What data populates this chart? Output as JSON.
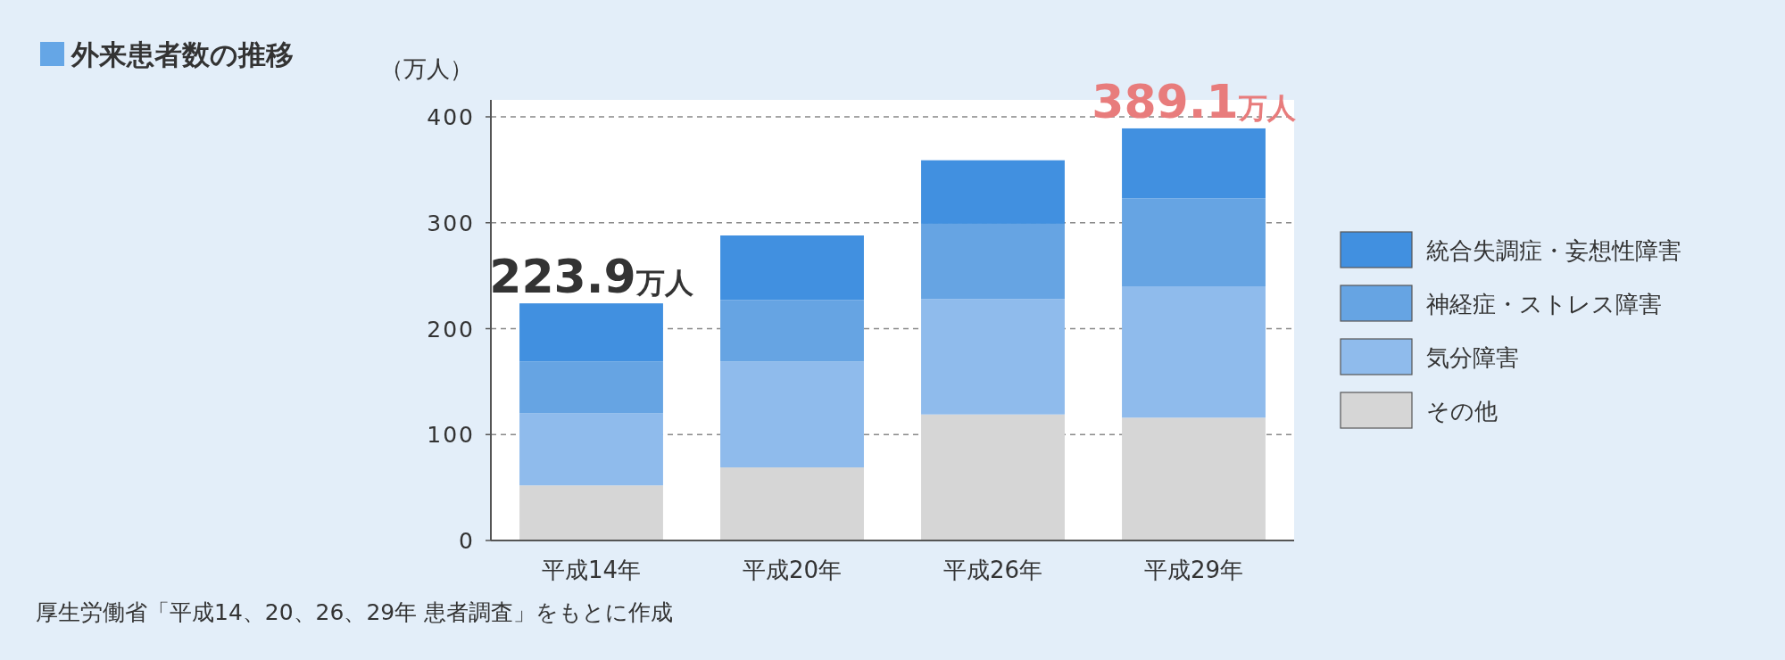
{
  "chart_data": {
    "type": "bar",
    "title": "外来患者数の推移",
    "ylabel": "（万人）",
    "stacked": true,
    "categories": [
      "平成14年",
      "平成20年",
      "平成26年",
      "平成29年"
    ],
    "series": [
      {
        "name": "その他",
        "color": "#d6d6d6",
        "values": [
          52,
          69,
          119,
          116
        ]
      },
      {
        "name": "気分障害",
        "color": "#8fbbec",
        "values": [
          68,
          100,
          109,
          124
        ]
      },
      {
        "name": "神経症・ストレス障害",
        "color": "#66a4e3",
        "values": [
          49,
          58,
          71,
          83
        ]
      },
      {
        "name": "統合失調症・妄想性障害",
        "color": "#4190e0",
        "values": [
          54.9,
          61,
          60,
          66.1
        ]
      }
    ],
    "ylim": [
      0,
      416
    ],
    "yticks": [
      0,
      100,
      200,
      300,
      400
    ],
    "grid": "y",
    "legend": "right",
    "annotations": [
      {
        "text": "223.9万人",
        "x": "平成14年",
        "y": 223.9
      },
      {
        "text": "389.1万人",
        "x": "平成29年",
        "y": 389.1
      },
      "厚生労働省「平成14、20、26、29年 患者調査」をもとに作成"
    ]
  }
}
